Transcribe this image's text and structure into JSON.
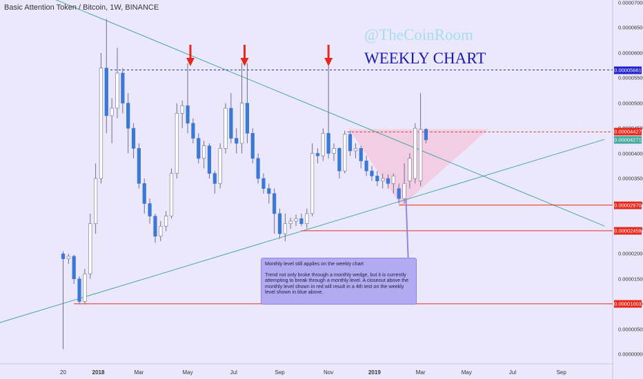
{
  "header": {
    "title": "Basic Attention Token / Bitcoin, 1W, BINANCE"
  },
  "watermark": "@TheCoinRoom",
  "headline": "WEEKLY CHART",
  "note": {
    "line1": "Monthly level still applies on the weekly chart",
    "line2": "Trend not only broke through a monthly wedge, but it is currently attempting to break through a monthly level. A closeout above the monthly level shown in red will result in a 4th test on the weekly level shown in blue above."
  },
  "colors": {
    "bull": "#ffffff",
    "bear": "#3b78d8",
    "wick": "#6e6e8a",
    "background": "#ece8fb",
    "trendline": "#44a89e",
    "red_level": "#e8271c",
    "blue_level": "#2222cc",
    "wedge_fill": "#f7b6cf",
    "arrow": "#e8271c"
  },
  "chart_data": {
    "type": "candlestick",
    "symbol": "BAT/BTC",
    "timeframe": "1W",
    "exchange": "BINANCE",
    "x_labels": [
      {
        "label": "20",
        "bold": false,
        "week": 0
      },
      {
        "label": "2018",
        "bold": true,
        "week": 6.5
      },
      {
        "label": "Mar",
        "bold": false,
        "week": 14
      },
      {
        "label": "May",
        "bold": false,
        "week": 23
      },
      {
        "label": "Jul",
        "bold": false,
        "week": 31.5
      },
      {
        "label": "Sep",
        "bold": false,
        "week": 40
      },
      {
        "label": "Nov",
        "bold": false,
        "week": 49
      },
      {
        "label": "2019",
        "bold": true,
        "week": 57.5
      },
      {
        "label": "Mar",
        "bold": false,
        "week": 66
      },
      {
        "label": "May",
        "bold": false,
        "week": 74.5
      },
      {
        "label": "Jul",
        "bold": false,
        "week": 83
      },
      {
        "label": "Sep",
        "bold": false,
        "week": 92
      }
    ],
    "y_ticks": [
      "0.00000000",
      "0.00000500",
      "0.00001000",
      "0.00001500",
      "0.00002000",
      "0.00002500",
      "0.00003000",
      "0.00003500",
      "0.00004000",
      "0.00004500",
      "0.00005000",
      "0.00005500",
      "0.00006000",
      "0.00006500",
      "0.00007000"
    ],
    "ylim": [
      0,
      7.35e-05
    ],
    "candles": [
      [
        2e-05,
        2.05e-05,
        1e-06,
        1.9e-05
      ],
      [
        1.9e-05,
        2e-05,
        1.8e-05,
        1.95e-05
      ],
      [
        1.95e-05,
        1.98e-05,
        1.4e-05,
        1.5e-05
      ],
      [
        1.5e-05,
        1.55e-05,
        1e-05,
        1.05e-05
      ],
      [
        1.05e-05,
        1.7e-05,
        1e-05,
        1.6e-05
      ],
      [
        1.6e-05,
        2.8e-05,
        1.5e-05,
        2.6e-05
      ],
      [
        2.6e-05,
        3.8e-05,
        2.4e-05,
        3.5e-05
      ],
      [
        3.5e-05,
        6e-05,
        3.4e-05,
        5.7e-05
      ],
      [
        5.7e-05,
        6.68e-05,
        4.4e-05,
        4.75e-05
      ],
      [
        4.75e-05,
        5.1e-05,
        4.2e-05,
        4.9e-05
      ],
      [
        4.9e-05,
        6.1e-05,
        4.7e-05,
        5.6e-05
      ],
      [
        5.6e-05,
        5.7e-05,
        4.8e-05,
        5e-05
      ],
      [
        5e-05,
        5.2e-05,
        4e-05,
        4.5e-05
      ],
      [
        4.5e-05,
        4.6e-05,
        3.9e-05,
        4.1e-05
      ],
      [
        4.1e-05,
        4.2e-05,
        3.3e-05,
        3.4e-05
      ],
      [
        3.4e-05,
        3.5e-05,
        2.8e-05,
        3e-05
      ],
      [
        3e-05,
        3.1e-05,
        2.6e-05,
        2.75e-05
      ],
      [
        2.75e-05,
        2.8e-05,
        2.22e-05,
        2.35e-05
      ],
      [
        2.35e-05,
        2.65e-05,
        2.25e-05,
        2.55e-05
      ],
      [
        2.55e-05,
        2.85e-05,
        2.45e-05,
        2.75e-05
      ],
      [
        2.75e-05,
        3.7e-05,
        2.7e-05,
        3.6e-05
      ],
      [
        3.6e-05,
        5e-05,
        3.5e-05,
        4.8e-05
      ],
      [
        4.8e-05,
        5.05e-05,
        4.5e-05,
        4.95e-05
      ],
      [
        4.95e-05,
        5.8e-05,
        4.4e-05,
        4.6e-05
      ],
      [
        4.6e-05,
        4.7e-05,
        4.2e-05,
        4.3e-05
      ],
      [
        4.3e-05,
        4.4e-05,
        3.8e-05,
        3.9e-05
      ],
      [
        3.9e-05,
        4.25e-05,
        3.7e-05,
        4.15e-05
      ],
      [
        4.15e-05,
        4.2e-05,
        3.5e-05,
        3.6e-05
      ],
      [
        3.6e-05,
        3.65e-05,
        3.2e-05,
        3.4e-05
      ],
      [
        3.4e-05,
        4.2e-05,
        3.3e-05,
        4.1e-05
      ],
      [
        4.1e-05,
        5e-05,
        4e-05,
        4.9e-05
      ],
      [
        4.9e-05,
        5.2e-05,
        4.2e-05,
        4.3e-05
      ],
      [
        4.3e-05,
        4.5e-05,
        4e-05,
        4.2e-05
      ],
      [
        4.2e-05,
        5.8e-05,
        4e-05,
        5e-05
      ],
      [
        5e-05,
        5.8e-05,
        4.2e-05,
        4.4e-05
      ],
      [
        4.4e-05,
        4.5e-05,
        3.8e-05,
        3.9e-05
      ],
      [
        3.9e-05,
        4e-05,
        3.4e-05,
        3.5e-05
      ],
      [
        3.5e-05,
        3.6e-05,
        3.2e-05,
        3.3e-05
      ],
      [
        3.3e-05,
        3.4e-05,
        3e-05,
        3.2e-05
      ],
      [
        3.2e-05,
        3.3e-05,
        2.4e-05,
        2.8e-05
      ],
      [
        2.8e-05,
        2.9e-05,
        2.3e-05,
        2.4e-05
      ],
      [
        2.4e-05,
        2.8e-05,
        2.25e-05,
        2.6e-05
      ],
      [
        2.6e-05,
        2.72e-05,
        2.5e-05,
        2.65e-05
      ],
      [
        2.65e-05,
        2.78e-05,
        2.55e-05,
        2.7e-05
      ],
      [
        2.7e-05,
        2.8e-05,
        2.55e-05,
        2.6e-05
      ],
      [
        2.6e-05,
        2.9e-05,
        2.5e-05,
        2.8e-05
      ],
      [
        2.8e-05,
        4.2e-05,
        2.75e-05,
        4e-05
      ],
      [
        4e-05,
        4.1e-05,
        3.8e-05,
        3.95e-05
      ],
      [
        3.95e-05,
        4.5e-05,
        3.85e-05,
        4.4e-05
      ],
      [
        4.4e-05,
        6.05e-05,
        3.9e-05,
        4e-05
      ],
      [
        4e-05,
        4.2e-05,
        3.85e-05,
        4.1e-05
      ],
      [
        4.1e-05,
        4.12e-05,
        3.5e-05,
        3.65e-05
      ],
      [
        3.65e-05,
        4.45e-05,
        3.6e-05,
        4.38e-05
      ],
      [
        4.38e-05,
        4.45e-05,
        3.95e-05,
        4.05e-05
      ],
      [
        4.05e-05,
        4.2e-05,
        3.9e-05,
        4.1e-05
      ],
      [
        4.1e-05,
        4.15e-05,
        3.7e-05,
        3.85e-05
      ],
      [
        3.85e-05,
        3.95e-05,
        3.55e-05,
        3.65e-05
      ],
      [
        3.65e-05,
        3.75e-05,
        3.45e-05,
        3.55e-05
      ],
      [
        3.55e-05,
        3.65e-05,
        3.35e-05,
        3.45e-05
      ],
      [
        3.45e-05,
        3.6e-05,
        3.3e-05,
        3.5e-05
      ],
      [
        3.5e-05,
        3.58e-05,
        3.3e-05,
        3.4e-05
      ],
      [
        3.4e-05,
        3.6e-05,
        3.2e-05,
        3.55e-05
      ],
      [
        3.3e-05,
        3.4e-05,
        3e-05,
        3.1e-05
      ],
      [
        3.1e-05,
        3.8e-05,
        3e-05,
        3.4e-05
      ],
      [
        3.45e-05,
        4e-05,
        3.3e-05,
        3.9e-05
      ],
      [
        3.5e-05,
        4.6e-05,
        3.4e-05,
        4.5e-05
      ],
      [
        3.45e-05,
        5.2e-05,
        3.35e-05,
        4.48e-05
      ],
      [
        4.48e-05,
        4.5e-05,
        4.2e-05,
        4.27e-05
      ]
    ],
    "levels": [
      {
        "value": 5.661e-05,
        "label": "0.00005661",
        "color": "blue",
        "style": "dashed"
      },
      {
        "value": 4.427e-05,
        "label": "0.00004427",
        "color": "red",
        "style": "dashed"
      },
      {
        "value": 4.271e-05,
        "label": "0.00004271",
        "color": "teal",
        "style": "trendline"
      },
      {
        "value": 2.97e-05,
        "label": "0.00002970",
        "color": "red",
        "style": "solid"
      },
      {
        "value": 2.459e-05,
        "label": "0.00002459",
        "color": "red",
        "style": "solid"
      },
      {
        "value": 1.003e-05,
        "label": "0.00001003",
        "color": "red",
        "style": "solid"
      }
    ],
    "trendlines": [
      {
        "name": "upper",
        "from": [
          -13.5,
          7.6e-05
        ],
        "to": [
          100,
          2.55e-05
        ]
      },
      {
        "name": "lower",
        "from": [
          -13.5,
          5.7e-06
        ],
        "to": [
          100,
          4.28e-05
        ]
      }
    ],
    "annotations": {
      "red_arrows_at_weeks": [
        23.5,
        33.5,
        49
      ]
    },
    "grid": false
  }
}
